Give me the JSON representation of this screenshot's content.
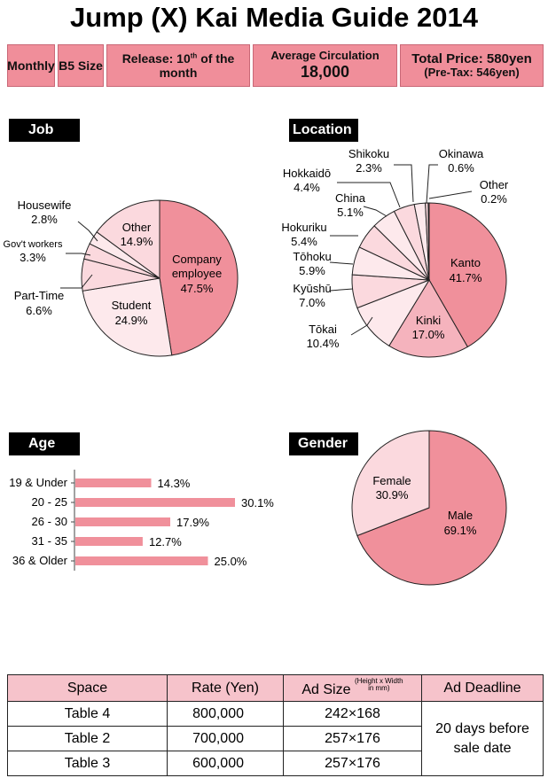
{
  "title": "Jump (X) Kai Media Guide 2014",
  "header": {
    "monthly": "Monthly",
    "size": "B5 Size",
    "release": "Release: 10th of the month",
    "circ_label": "Average Circulation",
    "circ_value": "18,000",
    "price": "Total Price: 580yen",
    "pretax": "(Pre-Tax: 546yen)"
  },
  "sections": {
    "job": "Job",
    "location": "Location",
    "age": "Age",
    "gender": "Gender"
  },
  "colors": {
    "pink_dark": "#f0909b",
    "pink_mid": "#f5b3bd",
    "pink_light": "#fbd9de",
    "pink_pale": "#fde9ec",
    "header_pink": "#f08e9a"
  },
  "chart_data": [
    {
      "type": "pie",
      "title": "Job",
      "slices": [
        {
          "label": "Company employee",
          "value": 47.5,
          "text": "47.5%"
        },
        {
          "label": "Student",
          "value": 24.9,
          "text": "24.9%"
        },
        {
          "label": "Part-Time",
          "value": 6.6,
          "text": "6.6%"
        },
        {
          "label": "Gov't workers",
          "value": 3.3,
          "text": "3.3%"
        },
        {
          "label": "Housewife",
          "value": 2.8,
          "text": "2.8%"
        },
        {
          "label": "Other",
          "value": 14.9,
          "text": "14.9%"
        }
      ]
    },
    {
      "type": "pie",
      "title": "Location",
      "slices": [
        {
          "label": "Kanto",
          "value": 41.7,
          "text": "41.7%"
        },
        {
          "label": "Kinki",
          "value": 17.0,
          "text": "17.0%"
        },
        {
          "label": "Tōkai",
          "value": 10.4,
          "text": "10.4%"
        },
        {
          "label": "Kyūshū",
          "value": 7.0,
          "text": "7.0%"
        },
        {
          "label": "Tōhoku",
          "value": 5.9,
          "text": "5.9%"
        },
        {
          "label": "Hokuriku",
          "value": 5.4,
          "text": "5.4%"
        },
        {
          "label": "China",
          "value": 5.1,
          "text": "5.1%"
        },
        {
          "label": "Hokkaidō",
          "value": 4.4,
          "text": "4.4%"
        },
        {
          "label": "Shikoku",
          "value": 2.3,
          "text": "2.3%"
        },
        {
          "label": "Okinawa",
          "value": 0.6,
          "text": "0.6%"
        },
        {
          "label": "Other",
          "value": 0.2,
          "text": "0.2%"
        }
      ]
    },
    {
      "type": "bar",
      "title": "Age",
      "orientation": "horizontal",
      "categories": [
        "19 & Under",
        "20 - 25",
        "26 - 30",
        "31 - 35",
        "36 & Older"
      ],
      "values": [
        14.3,
        30.1,
        17.9,
        12.7,
        25.0
      ],
      "value_labels": [
        "14.3%",
        "30.1%",
        "17.9%",
        "12.7%",
        "25.0%"
      ],
      "xlim": [
        0,
        30.1
      ]
    },
    {
      "type": "pie",
      "title": "Gender",
      "slices": [
        {
          "label": "Male",
          "value": 69.1,
          "text": "69.1%"
        },
        {
          "label": "Female",
          "value": 30.9,
          "text": "30.9%"
        }
      ]
    }
  ],
  "rates_table": {
    "headers": [
      "Space",
      "Rate (Yen)",
      "Ad Size",
      "Ad Deadline"
    ],
    "adsize_note": "Height x Width",
    "adsize_unit": "in mm",
    "rows": [
      {
        "space": "Table 4",
        "rate": "800,000",
        "size": "242×168"
      },
      {
        "space": "Table 2",
        "rate": "700,000",
        "size": "257×176"
      },
      {
        "space": "Table 3",
        "rate": "600,000",
        "size": "257×176"
      }
    ],
    "deadline_line1": "20 days before",
    "deadline_line2": "sale date"
  }
}
